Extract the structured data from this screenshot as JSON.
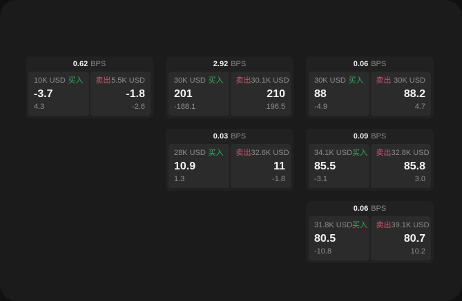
{
  "page": {
    "unit_label": "BPS",
    "buy_label": "买入",
    "sell_label": "卖出"
  },
  "colors": {
    "buy": "#3fa763",
    "sell": "#cd5672",
    "card_bg": "#212121",
    "panel_bg": "#2b2b2b",
    "page_bg": "#1b1b1b",
    "muted_text": "#8e8e8e",
    "bright_text": "#f5f5f5"
  },
  "cards": [
    {
      "bps": "0.62",
      "buy": {
        "amount": "10K USD",
        "value": "-3.7",
        "delta": "4.3"
      },
      "sell": {
        "amount": "5.5K USD",
        "value": "-1.8",
        "delta": "-2.6"
      }
    },
    {
      "bps": "2.92",
      "buy": {
        "amount": "30K USD",
        "value": "201",
        "delta": "-188.1"
      },
      "sell": {
        "amount": "30.1K USD",
        "value": "210",
        "delta": "196.5"
      }
    },
    {
      "bps": "0.06",
      "buy": {
        "amount": "30K USD",
        "value": "88",
        "delta": "-4.9"
      },
      "sell": {
        "amount": "30K USD",
        "value": "88.2",
        "delta": "4.7"
      }
    },
    {
      "bps": "0.03",
      "buy": {
        "amount": "28K USD",
        "value": "10.9",
        "delta": "1.3"
      },
      "sell": {
        "amount": "32.6K USD",
        "value": "11",
        "delta": "-1.8"
      }
    },
    {
      "bps": "0.09",
      "buy": {
        "amount": "34.1K USD",
        "value": "85.5",
        "delta": "-3.1"
      },
      "sell": {
        "amount": "32.8K USD",
        "value": "85.8",
        "delta": "3.0"
      }
    },
    {
      "bps": "0.06",
      "buy": {
        "amount": "31.8K USD",
        "value": "80.5",
        "delta": "-10.8"
      },
      "sell": {
        "amount": "39.1K USD",
        "value": "80.7",
        "delta": "10.2"
      }
    }
  ]
}
